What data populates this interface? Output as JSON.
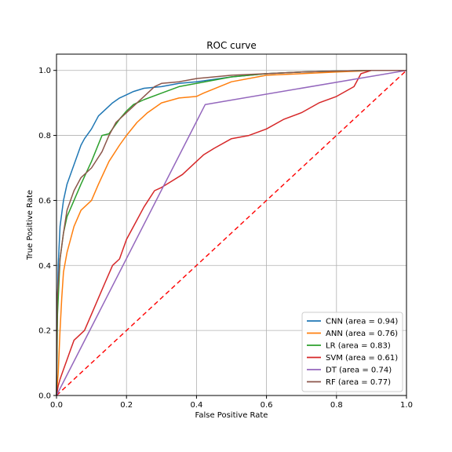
{
  "chart_data": {
    "type": "line",
    "title": "ROC curve",
    "xlabel": "False Positive Rate",
    "ylabel": "True Positive Rate",
    "xlim": [
      0,
      1
    ],
    "ylim": [
      0,
      1.05
    ],
    "xticks": [
      0.0,
      0.2,
      0.4,
      0.6,
      0.8,
      1.0
    ],
    "yticks": [
      0.0,
      0.2,
      0.4,
      0.6,
      0.8,
      1.0
    ],
    "xtick_labels": [
      "0.0",
      "0.2",
      "0.4",
      "0.6",
      "0.8",
      "1.0"
    ],
    "ytick_labels": [
      "0.0",
      "0.2",
      "0.4",
      "0.6",
      "0.8",
      "1.0"
    ],
    "grid": true,
    "legend_position": "lower right",
    "chance_line": {
      "x": [
        0,
        1
      ],
      "y": [
        0,
        1
      ],
      "color": "#ff0000",
      "style": "dashed"
    },
    "series": [
      {
        "name": "CNN (area = 0.94)",
        "color": "#1f77b4",
        "x": [
          0,
          0.002,
          0.005,
          0.01,
          0.02,
          0.03,
          0.05,
          0.07,
          0.08,
          0.1,
          0.12,
          0.14,
          0.16,
          0.18,
          0.2,
          0.22,
          0.25,
          0.3,
          0.35,
          0.4,
          0.5,
          0.6,
          0.7,
          0.8,
          0.9,
          1.0
        ],
        "y": [
          0,
          0.25,
          0.4,
          0.52,
          0.6,
          0.65,
          0.71,
          0.77,
          0.79,
          0.82,
          0.86,
          0.88,
          0.9,
          0.915,
          0.925,
          0.935,
          0.945,
          0.95,
          0.96,
          0.965,
          0.98,
          0.99,
          0.995,
          0.998,
          1.0,
          1.0
        ]
      },
      {
        "name": "ANN (area = 0.76)",
        "color": "#ff7f0e",
        "x": [
          0,
          0.005,
          0.01,
          0.015,
          0.02,
          0.03,
          0.05,
          0.07,
          0.1,
          0.12,
          0.15,
          0.18,
          0.2,
          0.23,
          0.26,
          0.3,
          0.35,
          0.4,
          0.42,
          0.5,
          0.6,
          0.7,
          0.8,
          0.87,
          0.9,
          1.0
        ],
        "y": [
          0,
          0.07,
          0.2,
          0.3,
          0.38,
          0.44,
          0.52,
          0.57,
          0.6,
          0.65,
          0.72,
          0.77,
          0.8,
          0.84,
          0.87,
          0.9,
          0.915,
          0.92,
          0.93,
          0.965,
          0.985,
          0.99,
          0.995,
          0.998,
          1.0,
          1.0
        ]
      },
      {
        "name": "LR (area = 0.83)",
        "color": "#2ca02c",
        "x": [
          0,
          0.003,
          0.01,
          0.02,
          0.03,
          0.05,
          0.07,
          0.1,
          0.13,
          0.15,
          0.18,
          0.2,
          0.22,
          0.25,
          0.3,
          0.35,
          0.4,
          0.45,
          0.5,
          0.6,
          0.7,
          0.8,
          0.9,
          1.0
        ],
        "y": [
          0,
          0.25,
          0.42,
          0.5,
          0.55,
          0.6,
          0.65,
          0.72,
          0.8,
          0.805,
          0.85,
          0.875,
          0.895,
          0.91,
          0.93,
          0.95,
          0.96,
          0.97,
          0.98,
          0.99,
          0.995,
          0.998,
          1.0,
          1.0
        ]
      },
      {
        "name": "SVM (area = 0.61)",
        "color": "#d62728",
        "x": [
          0,
          0.005,
          0.01,
          0.02,
          0.03,
          0.04,
          0.05,
          0.06,
          0.08,
          0.1,
          0.12,
          0.14,
          0.16,
          0.18,
          0.2,
          0.22,
          0.25,
          0.28,
          0.3,
          0.33,
          0.36,
          0.4,
          0.42,
          0.45,
          0.5,
          0.55,
          0.6,
          0.65,
          0.7,
          0.75,
          0.8,
          0.85,
          0.87,
          0.9,
          1.0
        ],
        "y": [
          0,
          0.03,
          0.05,
          0.08,
          0.11,
          0.14,
          0.17,
          0.18,
          0.2,
          0.25,
          0.3,
          0.35,
          0.4,
          0.42,
          0.48,
          0.52,
          0.58,
          0.63,
          0.64,
          0.66,
          0.68,
          0.72,
          0.74,
          0.76,
          0.79,
          0.8,
          0.82,
          0.85,
          0.87,
          0.9,
          0.92,
          0.95,
          0.99,
          1.0,
          1.0
        ]
      },
      {
        "name": "DT (area = 0.74)",
        "color": "#9467bd",
        "x": [
          0,
          0.425,
          1.0
        ],
        "y": [
          0,
          0.895,
          1.0
        ]
      },
      {
        "name": "RF (area = 0.77)",
        "color": "#8c564b",
        "x": [
          0,
          0.002,
          0.01,
          0.02,
          0.03,
          0.05,
          0.07,
          0.1,
          0.13,
          0.15,
          0.17,
          0.2,
          0.22,
          0.25,
          0.28,
          0.3,
          0.35,
          0.4,
          0.45,
          0.5,
          0.6,
          0.7,
          0.8,
          0.9,
          1.0
        ],
        "y": [
          0,
          0.3,
          0.42,
          0.5,
          0.57,
          0.63,
          0.67,
          0.7,
          0.75,
          0.8,
          0.84,
          0.87,
          0.89,
          0.92,
          0.95,
          0.96,
          0.965,
          0.975,
          0.98,
          0.985,
          0.99,
          0.995,
          0.998,
          1.0,
          1.0
        ]
      }
    ]
  }
}
